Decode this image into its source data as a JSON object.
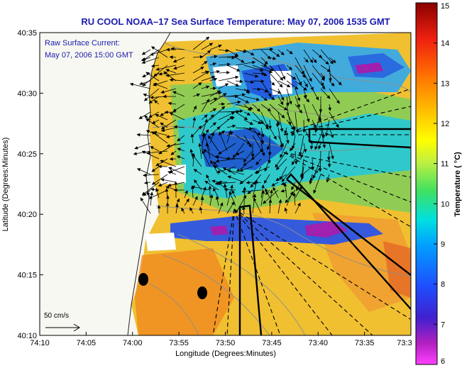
{
  "chart_data": {
    "type": "heatmap",
    "title": "RU COOL  NOAA–17  Sea Surface Temperature:  May 07, 2006 1535 GMT",
    "xlabel": "Longitude (Degrees:Minutes)",
    "ylabel": "Latitude (Degrees:Minutes)",
    "x_ticks": [
      "74:10",
      "74:05",
      "74:00",
      "73:55",
      "73:50",
      "73:45",
      "73:40",
      "73:35",
      "73:3"
    ],
    "y_ticks": [
      "40:35",
      "40:30",
      "40:25",
      "40:20",
      "40:15",
      "40:10"
    ],
    "xlim": [
      "74:10",
      "73:30"
    ],
    "ylim": [
      "40:10",
      "40:35"
    ],
    "colorbar": {
      "label": "Temperature ( °C)",
      "range": [
        6,
        15
      ],
      "ticks": [
        "15",
        "14",
        "13",
        "12",
        "11",
        "10",
        "9",
        "8",
        "7",
        "6"
      ]
    },
    "annotations": {
      "current_title": "Raw Surface Current:",
      "current_time": "May 07, 2006 15:00 GMT",
      "scale_label": "50 cm/s"
    },
    "grid": false,
    "legend": "none"
  },
  "colors": {
    "title": "#1a1ab0",
    "land": "#f8f8f2",
    "warm": "#e88a1e",
    "cool": "#1a3ccf",
    "cold": "#a020a0"
  }
}
